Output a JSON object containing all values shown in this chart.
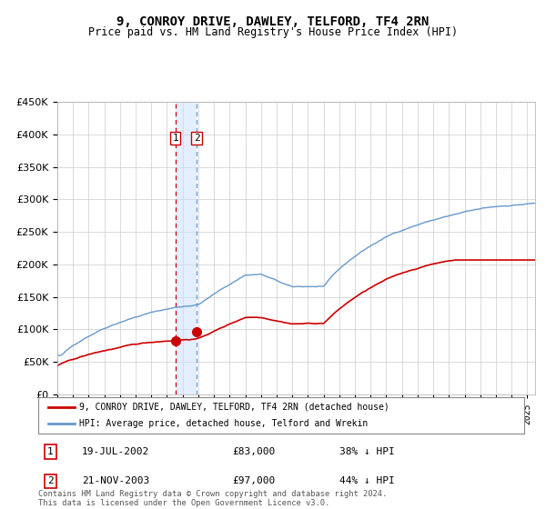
{
  "title": "9, CONROY DRIVE, DAWLEY, TELFORD, TF4 2RN",
  "subtitle": "Price paid vs. HM Land Registry's House Price Index (HPI)",
  "legend_line1": "9, CONROY DRIVE, DAWLEY, TELFORD, TF4 2RN (detached house)",
  "legend_line2": "HPI: Average price, detached house, Telford and Wrekin",
  "transaction1_date": "19-JUL-2002",
  "transaction1_price": 83000,
  "transaction1_hpi_diff": "38% ↓ HPI",
  "transaction2_date": "21-NOV-2003",
  "transaction2_price": 97000,
  "transaction2_hpi_diff": "44% ↓ HPI",
  "footnote": "Contains HM Land Registry data © Crown copyright and database right 2024.\nThis data is licensed under the Open Government Licence v3.0.",
  "hpi_color": "#6699cc",
  "price_color": "#cc0000",
  "marker_color": "#cc0000",
  "background_color": "#ffffff",
  "grid_color": "#cccccc",
  "ylim": [
    0,
    450000
  ],
  "yticks": [
    0,
    50000,
    100000,
    150000,
    200000,
    250000,
    300000,
    350000,
    400000,
    450000
  ],
  "x_start_year": 1995,
  "x_end_year": 2025,
  "transaction1_year": 2002.54,
  "transaction2_year": 2003.89
}
